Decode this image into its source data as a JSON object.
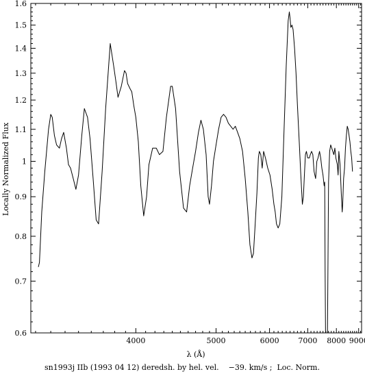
{
  "chart_data": {
    "type": "line",
    "title": "",
    "xlabel": "λ (Å)",
    "ylabel": "Locally Normalized Flux",
    "caption": "sn1993j IIb (1993 04 12) deredsh. by hel. vel.    −39. km/s ;  Loc. Norm.",
    "x_scale": "reciprocal",
    "y_scale": "log",
    "xlim": [
      3170,
      9150
    ],
    "ylim": [
      0.6,
      1.6
    ],
    "x_ticks": [
      4000,
      5000,
      6000,
      7000,
      8000,
      9000
    ],
    "x_tick_labels": [
      "4000",
      "5000",
      "6000",
      "7000",
      "8000",
      "9000"
    ],
    "y_ticks": [
      0.6,
      0.7,
      0.8,
      0.9,
      1.0,
      1.1,
      1.2,
      1.3,
      1.4,
      1.5,
      1.6
    ],
    "y_tick_labels": [
      "0.6",
      "0.7",
      "0.8",
      "0.9",
      "1",
      "1.1",
      "1.2",
      "1.3",
      "1.4",
      "1.5",
      "1.6"
    ],
    "grid": false,
    "line_color": "#000000",
    "series": [
      {
        "x": [
          3218,
          3225,
          3240,
          3260,
          3285,
          3300,
          3310,
          3325,
          3340,
          3360,
          3375,
          3390,
          3410,
          3425,
          3440,
          3460,
          3480,
          3500,
          3525,
          3545,
          3570,
          3590,
          3615,
          3640,
          3660,
          3690,
          3720,
          3760,
          3790,
          3810,
          3830,
          3860,
          3890,
          3905,
          3920,
          3945,
          3960,
          3980,
          4000,
          4025,
          4050,
          4080,
          4110,
          4135,
          4175,
          4215,
          4250,
          4290,
          4330,
          4380,
          4400,
          4440,
          4490,
          4540,
          4580,
          4620,
          4660,
          4700,
          4740,
          4775,
          4810,
          4850,
          4880,
          4900,
          4930,
          4960,
          5000,
          5040,
          5080,
          5120,
          5160,
          5200,
          5240,
          5280,
          5320,
          5360,
          5400,
          5450,
          5500,
          5550,
          5590,
          5630,
          5660,
          5690,
          5730,
          5760,
          5780,
          5810,
          5840,
          5870,
          5910,
          5960,
          6010,
          6060,
          6100,
          6130,
          6160,
          6200,
          6240,
          6290,
          6340,
          6400,
          6450,
          6480,
          6500,
          6520,
          6550,
          6580,
          6620,
          6660,
          6700,
          6750,
          6790,
          6840,
          6870,
          6900,
          6930,
          6960,
          7000,
          7050,
          7080,
          7120,
          7160,
          7200,
          7250,
          7290,
          7330,
          7380,
          7420,
          7460,
          7500,
          7540,
          7560,
          7575,
          7590,
          7605,
          7625,
          7660,
          7700,
          7740,
          7780,
          7820,
          7860,
          7900,
          7940,
          7980,
          8040,
          8070,
          8100,
          8150,
          8200,
          8240,
          8260,
          8300,
          8340,
          8380,
          8420,
          8460,
          8500,
          8540,
          8580,
          8620,
          8660,
          8700
        ],
        "y": [
          0.73,
          0.74,
          0.86,
          0.97,
          1.1,
          1.15,
          1.14,
          1.08,
          1.05,
          1.04,
          1.07,
          1.09,
          1.04,
          0.99,
          0.98,
          0.95,
          0.92,
          0.96,
          1.08,
          1.17,
          1.14,
          1.07,
          0.95,
          0.84,
          0.83,
          0.97,
          1.17,
          1.42,
          1.33,
          1.27,
          1.21,
          1.25,
          1.31,
          1.3,
          1.26,
          1.24,
          1.23,
          1.18,
          1.14,
          1.06,
          0.93,
          0.85,
          0.9,
          0.99,
          1.04,
          1.04,
          1.02,
          1.03,
          1.14,
          1.25,
          1.25,
          1.17,
          0.97,
          0.87,
          0.86,
          0.93,
          0.98,
          1.03,
          1.09,
          1.13,
          1.1,
          1.02,
          0.9,
          0.88,
          0.93,
          1.0,
          1.05,
          1.1,
          1.14,
          1.15,
          1.14,
          1.12,
          1.11,
          1.1,
          1.11,
          1.09,
          1.07,
          1.03,
          0.95,
          0.86,
          0.78,
          0.75,
          0.76,
          0.82,
          0.91,
          1.01,
          1.03,
          1.02,
          0.98,
          1.03,
          1.01,
          0.98,
          0.96,
          0.92,
          0.88,
          0.86,
          0.83,
          0.82,
          0.83,
          0.9,
          1.08,
          1.33,
          1.52,
          1.56,
          1.53,
          1.49,
          1.5,
          1.48,
          1.4,
          1.3,
          1.18,
          1.06,
          0.97,
          0.88,
          0.9,
          0.96,
          1.02,
          1.03,
          1.01,
          1.01,
          1.02,
          1.03,
          1.02,
          0.97,
          0.95,
          1.0,
          1.01,
          1.03,
          1.01,
          0.98,
          0.96,
          0.93,
          0.94,
          0.72,
          0.6,
          0.6,
          0.6,
          0.6,
          0.94,
          1.03,
          1.05,
          1.04,
          1.03,
          1.02,
          1.04,
          1.01,
          0.99,
          0.96,
          1.03,
          0.99,
          0.91,
          0.86,
          0.88,
          0.95,
          0.98,
          1.04,
          1.08,
          1.11,
          1.1,
          1.08,
          1.06,
          1.03,
          1.01,
          0.97
        ]
      }
    ]
  }
}
